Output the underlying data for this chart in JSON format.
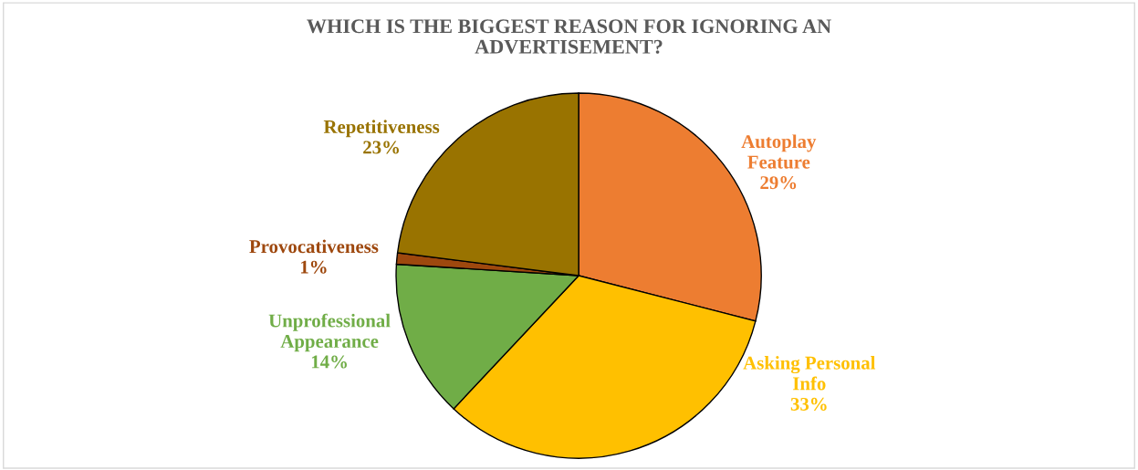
{
  "chart_data": {
    "type": "pie",
    "title": "WHICH IS THE BIGGEST REASON FOR IGNORING AN ADVERTISEMENT?",
    "categories": [
      "Autoplay\nFeature",
      "Asking Personal\nInfo",
      "Unprofessional\nAppearance",
      "Provocativeness",
      "Repetitiveness"
    ],
    "values": [
      29,
      33,
      14,
      1,
      23
    ],
    "colors": [
      "#ed7d31",
      "#ffc000",
      "#70ad47",
      "#9e480e",
      "#997300"
    ],
    "value_labels": [
      "29%",
      "33%",
      "14%",
      "1%",
      "23%"
    ],
    "legend": false
  }
}
